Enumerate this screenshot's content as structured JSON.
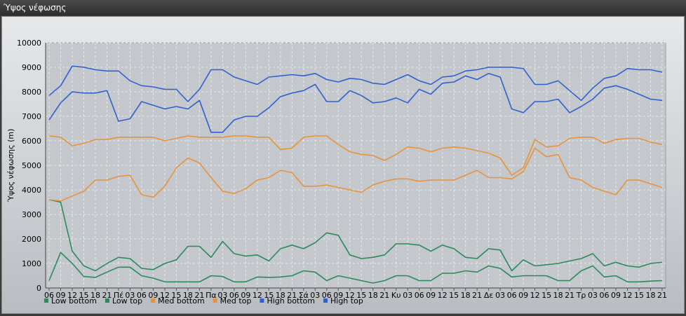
{
  "window": {
    "title": "Ύψος νέφωσης"
  },
  "chart_data": {
    "type": "line",
    "ylabel": "Ύψος νέφωσης (m)",
    "ylim": [
      0,
      10000
    ],
    "yticks": [
      0,
      1000,
      2000,
      3000,
      4000,
      5000,
      6000,
      7000,
      8000,
      9000,
      10000
    ],
    "x": [
      "06",
      "09",
      "12",
      "15",
      "18",
      "21",
      "Πέ",
      "03",
      "06",
      "09",
      "12",
      "15",
      "18",
      "21",
      "Πα",
      "03",
      "06",
      "09",
      "12",
      "15",
      "18",
      "21",
      "Σά",
      "03",
      "06",
      "09",
      "12",
      "15",
      "18",
      "21",
      "Κυ",
      "03",
      "06",
      "09",
      "12",
      "15",
      "18",
      "21",
      "Δε",
      "03",
      "06",
      "09",
      "12",
      "15",
      "18",
      "21",
      "Τρ",
      "03",
      "06",
      "09",
      "12",
      "15",
      "18",
      "21"
    ],
    "grid": true,
    "legend_position": "bottom",
    "series": [
      {
        "name": "Low bottom",
        "color": "#2a8a5a",
        "values": [
          300,
          1450,
          1000,
          470,
          430,
          650,
          850,
          850,
          500,
          400,
          250,
          250,
          250,
          250,
          500,
          470,
          250,
          250,
          450,
          430,
          450,
          500,
          700,
          650,
          300,
          500,
          400,
          300,
          200,
          300,
          500,
          500,
          300,
          300,
          600,
          600,
          700,
          650,
          900,
          800,
          450,
          500,
          500,
          500,
          300,
          300,
          700,
          900,
          450,
          500,
          250,
          250,
          280,
          300
        ]
      },
      {
        "name": "Low top",
        "color": "#2a8a5a",
        "values": [
          3600,
          3500,
          1500,
          900,
          700,
          1000,
          1250,
          1200,
          800,
          750,
          1000,
          1150,
          1700,
          1700,
          1250,
          1900,
          1400,
          1300,
          1350,
          1100,
          1600,
          1750,
          1600,
          1850,
          2250,
          2150,
          1350,
          1200,
          1250,
          1350,
          1800,
          1800,
          1750,
          1500,
          1750,
          1600,
          1250,
          1200,
          1600,
          1550,
          700,
          1150,
          900,
          950,
          1000,
          1100,
          1200,
          1400,
          900,
          1050,
          900,
          850,
          1000,
          1050
        ]
      },
      {
        "name": "Med bottom",
        "color": "#e8923a",
        "values": [
          3600,
          3550,
          3750,
          3950,
          4400,
          4400,
          4550,
          4600,
          3800,
          3700,
          4150,
          4900,
          5300,
          5100,
          4500,
          3950,
          3850,
          4050,
          4400,
          4500,
          4800,
          4700,
          4150,
          4150,
          4200,
          4100,
          4000,
          3900,
          4200,
          4350,
          4450,
          4450,
          4350,
          4400,
          4400,
          4400,
          4600,
          4800,
          4500,
          4500,
          4450,
          4750,
          5700,
          5350,
          5450,
          4500,
          4400,
          4100,
          3950,
          3800,
          4400,
          4400,
          4250,
          4100
        ]
      },
      {
        "name": "Med top",
        "color": "#e8923a",
        "values": [
          6200,
          6150,
          5800,
          5900,
          6050,
          6050,
          6150,
          6150,
          6150,
          6150,
          6000,
          6100,
          6200,
          6150,
          6150,
          6150,
          6200,
          6200,
          6150,
          6150,
          5650,
          5700,
          6150,
          6200,
          6200,
          5850,
          5550,
          5450,
          5400,
          5200,
          5450,
          5750,
          5700,
          5550,
          5700,
          5750,
          5700,
          5600,
          5500,
          5300,
          4600,
          4900,
          6050,
          5750,
          5800,
          6100,
          6150,
          6150,
          5900,
          6050,
          6100,
          6100,
          5950,
          5850
        ]
      },
      {
        "name": "High bottom",
        "color": "#3060d0",
        "values": [
          6850,
          7550,
          8000,
          7950,
          7950,
          8050,
          6800,
          6900,
          7600,
          7450,
          7300,
          7400,
          7300,
          7650,
          6350,
          6350,
          6850,
          7000,
          7000,
          7350,
          7800,
          7950,
          8050,
          8300,
          7600,
          7600,
          8050,
          7850,
          7550,
          7600,
          7750,
          7550,
          8100,
          7900,
          8350,
          8400,
          8650,
          8500,
          8750,
          8600,
          7300,
          7150,
          7600,
          7600,
          7700,
          7150,
          7400,
          7700,
          8150,
          8250,
          8100,
          7900,
          7700,
          7650
        ]
      },
      {
        "name": "High top",
        "color": "#3060d0",
        "values": [
          7850,
          8250,
          9050,
          9000,
          8900,
          8850,
          8850,
          8450,
          8250,
          8200,
          8100,
          8100,
          7600,
          8100,
          8900,
          8900,
          8600,
          8450,
          8300,
          8600,
          8650,
          8700,
          8650,
          8750,
          8500,
          8400,
          8550,
          8500,
          8350,
          8300,
          8500,
          8700,
          8450,
          8300,
          8600,
          8650,
          8850,
          8900,
          9000,
          9000,
          9000,
          8950,
          8300,
          8300,
          8450,
          8050,
          7650,
          8150,
          8550,
          8650,
          8950,
          8900,
          8900,
          8800
        ]
      }
    ]
  }
}
